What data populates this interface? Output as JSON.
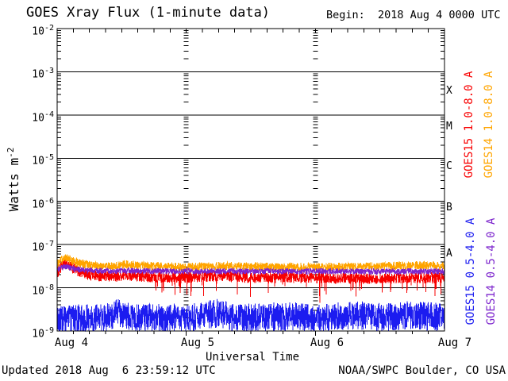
{
  "chart_data": {
    "type": "line",
    "title": "GOES Xray Flux (1-minute data)",
    "begin_label": "Begin:  2018 Aug 4 0000 UTC",
    "xlabel": "Universal Time",
    "ylabel": {
      "base": "Watts m",
      "exp": "-2"
    },
    "y_scale": "log",
    "y_range": [
      1e-09,
      0.01
    ],
    "x_range_hours": [
      0,
      72
    ],
    "x_minor_tick_interval_hours": 3,
    "x_tick_labels": [
      "Aug 4",
      "Aug 5",
      "Aug 6",
      "Aug 7"
    ],
    "y_tick_labels": [
      {
        "base": "10",
        "exp": "-2"
      },
      {
        "base": "10",
        "exp": "-3"
      },
      {
        "base": "10",
        "exp": "-4"
      },
      {
        "base": "10",
        "exp": "-5"
      },
      {
        "base": "10",
        "exp": "-6"
      },
      {
        "base": "10",
        "exp": "-7"
      },
      {
        "base": "10",
        "exp": "-8"
      },
      {
        "base": "10",
        "exp": "-9"
      }
    ],
    "flare_class_labels": [
      "X",
      "M",
      "C",
      "B",
      "A"
    ],
    "grid": {
      "horizontal": "solid black line at each decade",
      "vertical": "log-spaced tick columns at day boundaries (Aug 5, Aug 6)"
    },
    "series": [
      {
        "name": "GOES15 1.0-8.0 A",
        "color": "#f80000",
        "anchors": [
          [
            0,
            2.2e-08
          ],
          [
            0.8,
            3e-08
          ],
          [
            1.5,
            3.8e-08
          ],
          [
            2.5,
            3e-08
          ],
          [
            4,
            2.4e-08
          ],
          [
            6,
            2e-08
          ],
          [
            10,
            1.8e-08
          ],
          [
            13,
            2e-08
          ],
          [
            16,
            1.8e-08
          ],
          [
            24,
            1.75e-08
          ],
          [
            30,
            1.9e-08
          ],
          [
            36,
            1.7e-08
          ],
          [
            42,
            1.75e-08
          ],
          [
            48,
            1.7e-08
          ],
          [
            54,
            1.65e-08
          ],
          [
            60,
            1.65e-08
          ],
          [
            66,
            1.7e-08
          ],
          [
            72,
            1.7e-08
          ]
        ],
        "noise_log10": 0.13,
        "dip": {
          "prob": 0.03,
          "after_hour": 18,
          "max_log10": 0.45
        },
        "spikes": [
          [
            33.5,
            7e-09
          ],
          [
            48.8,
            4.5e-09
          ],
          [
            55,
            9e-09
          ],
          [
            62,
            8e-09
          ],
          [
            68.5,
            8e-09
          ]
        ]
      },
      {
        "name": "GOES14 1.0-8.0 A",
        "color": "#ffa500",
        "anchors": [
          [
            0,
            3.4e-08
          ],
          [
            0.8,
            4.4e-08
          ],
          [
            1.5,
            5.2e-08
          ],
          [
            2.5,
            4.4e-08
          ],
          [
            4,
            3.7e-08
          ],
          [
            6,
            3.3e-08
          ],
          [
            10,
            3.1e-08
          ],
          [
            13,
            3.5e-08
          ],
          [
            16,
            3.2e-08
          ],
          [
            24,
            3e-08
          ],
          [
            30,
            3.2e-08
          ],
          [
            36,
            3.1e-08
          ],
          [
            48,
            3e-08
          ],
          [
            60,
            3.1e-08
          ],
          [
            66,
            3.3e-08
          ],
          [
            72,
            3.2e-08
          ]
        ],
        "noise_log10": 0.1
      },
      {
        "name": "GOES14 0.5-4.0 A",
        "color": "#7d26cd",
        "anchors": [
          [
            0,
            2.6e-08
          ],
          [
            1.5,
            3.1e-08
          ],
          [
            3,
            2.7e-08
          ],
          [
            6,
            2.5e-08
          ],
          [
            24,
            2.4e-08
          ],
          [
            48,
            2.4e-08
          ],
          [
            72,
            2.4e-08
          ]
        ],
        "noise_log10": 0.07
      },
      {
        "name": "GOES15 0.5-4.0 A",
        "color": "#1c1cf0",
        "anchors": [
          [
            0,
            1.7e-09
          ],
          [
            2,
            1.9e-09
          ],
          [
            8,
            2e-09
          ],
          [
            11.5,
            2.6e-09
          ],
          [
            14,
            2e-09
          ],
          [
            24,
            2e-09
          ],
          [
            30,
            2.6e-09
          ],
          [
            33,
            2e-09
          ],
          [
            44,
            2.2e-09
          ],
          [
            48,
            2e-09
          ],
          [
            56,
            2.3e-09
          ],
          [
            60,
            2e-09
          ],
          [
            65,
            2.3e-09
          ],
          [
            72,
            2.1e-09
          ]
        ],
        "noise_log10": 0.33
      }
    ],
    "footer_left": "Updated 2018 Aug  6 23:59:12 UTC",
    "footer_right": "NOAA/SWPC Boulder, CO USA"
  }
}
